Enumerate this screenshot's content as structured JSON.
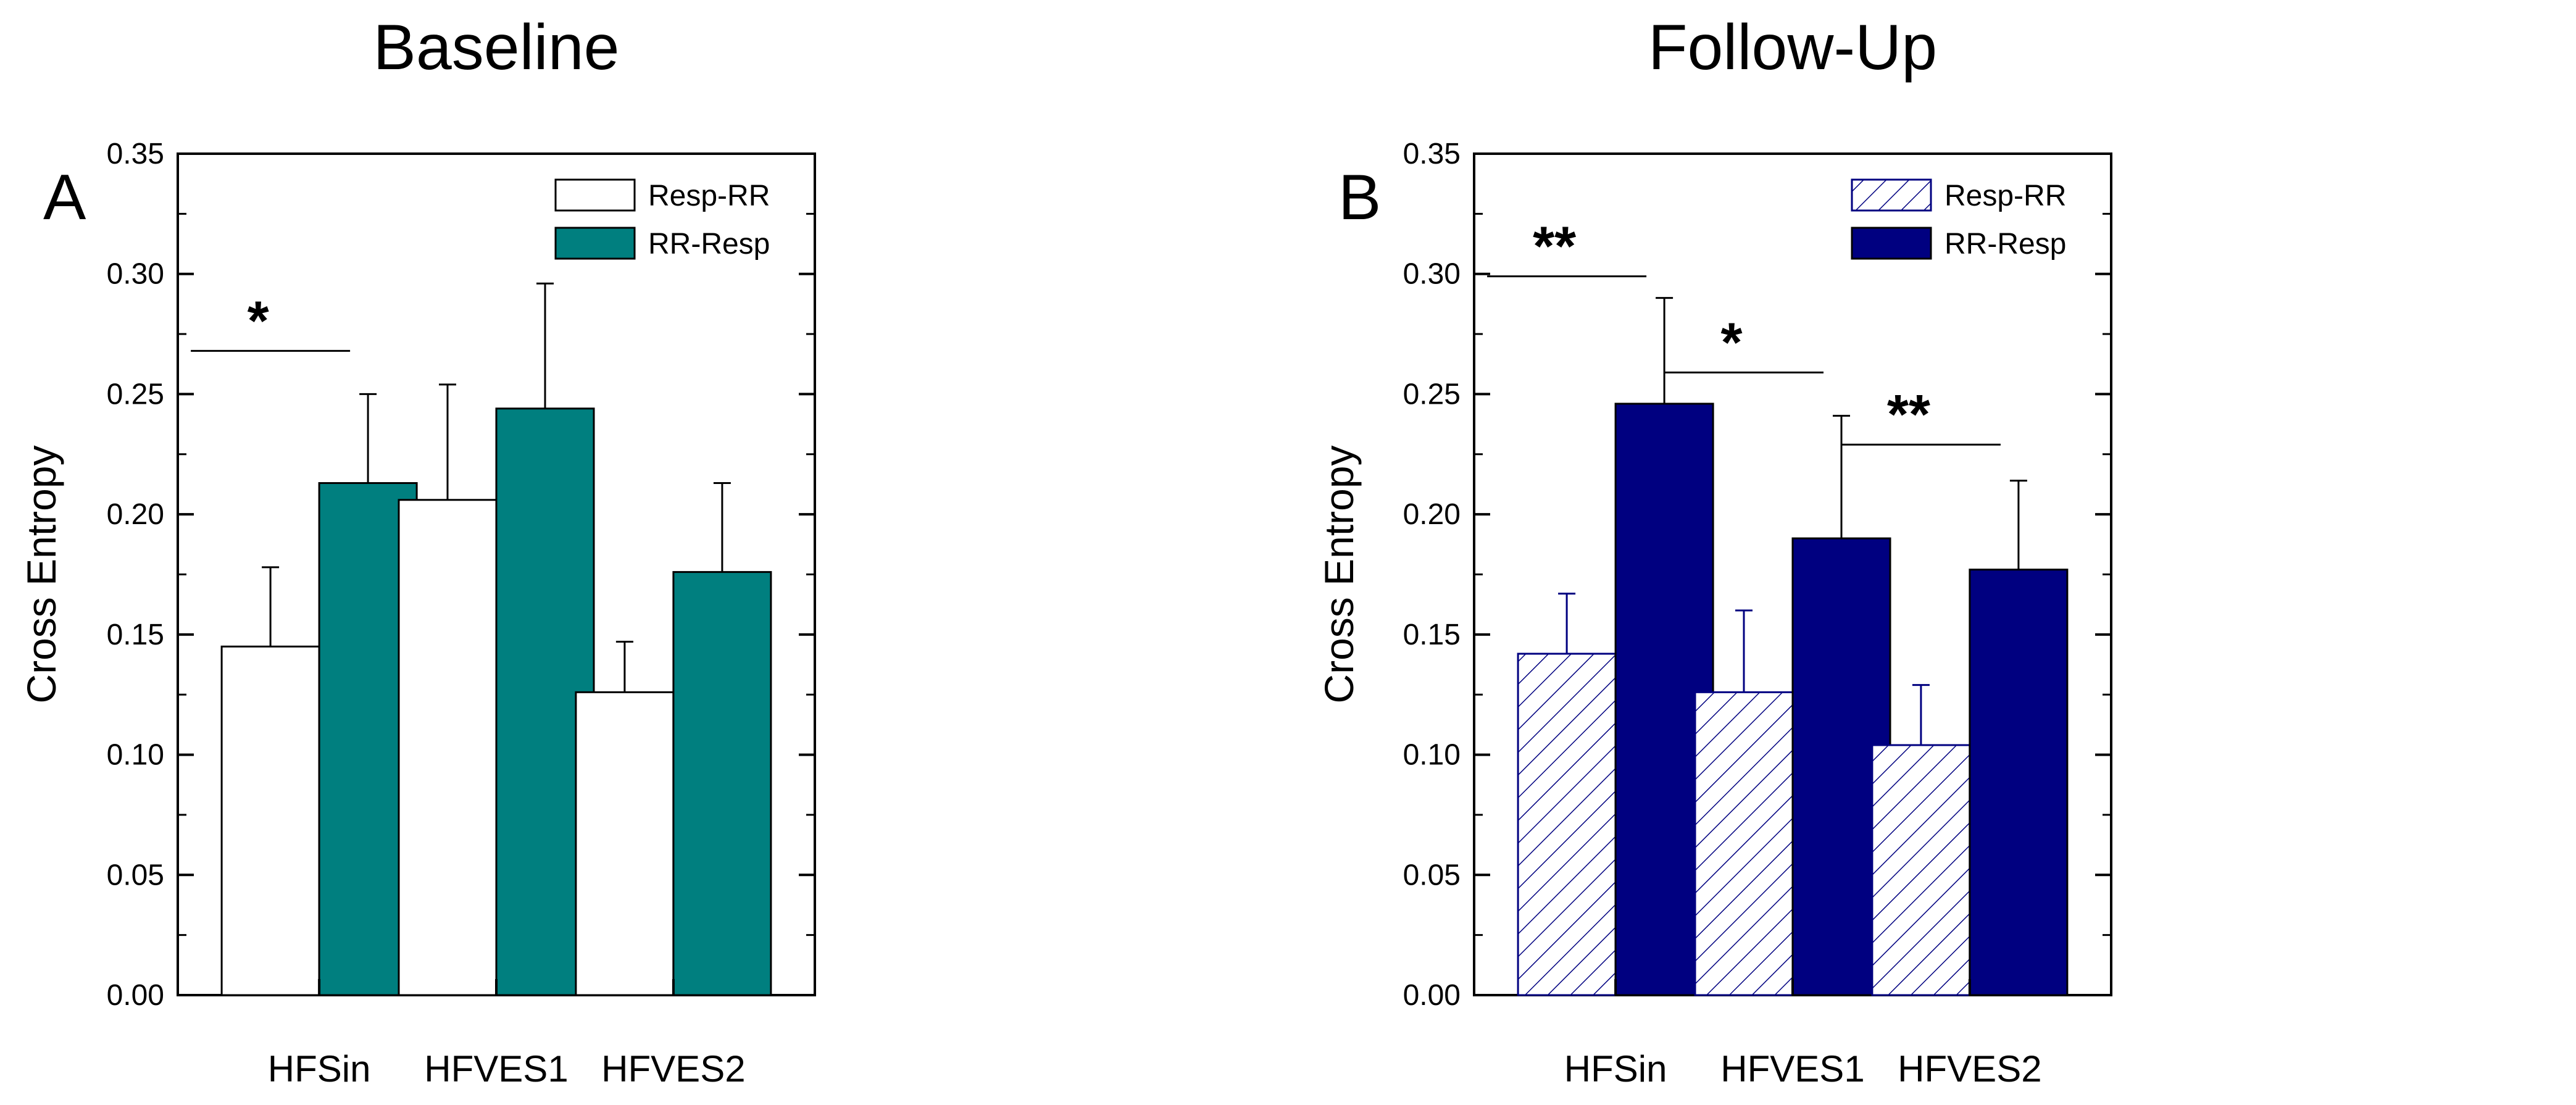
{
  "chart_data": [
    {
      "type": "bar",
      "panel_letter": "A",
      "title": "Baseline",
      "xlabel": "",
      "ylabel": "Cross Entropy",
      "ylim": [
        0,
        0.35
      ],
      "ytick_labels": [
        "0.00",
        "0.05",
        "0.10",
        "0.15",
        "0.20",
        "0.25",
        "0.30",
        "0.35"
      ],
      "grid": false,
      "legend_position": "top-right",
      "categories": [
        "HFSin",
        "HFVES1",
        "HFVES2"
      ],
      "series": [
        {
          "name": "Resp-RR",
          "values": [
            0.145,
            0.206,
            0.126
          ],
          "errors": [
            0.033,
            0.048,
            0.021
          ],
          "fill": "#ffffff",
          "pattern": "none"
        },
        {
          "name": "RR-Resp",
          "values": [
            0.213,
            0.244,
            0.176
          ],
          "errors": [
            0.037,
            0.052,
            0.037
          ],
          "fill": "#007f7f",
          "pattern": "none"
        }
      ],
      "annotations": [
        {
          "category": "HFSin",
          "text": "*",
          "bracket_at": 0.268
        }
      ]
    },
    {
      "type": "bar",
      "panel_letter": "B",
      "title": "Follow-Up",
      "xlabel": "",
      "ylabel": "Cross Entropy",
      "ylim": [
        0,
        0.35
      ],
      "ytick_labels": [
        "0.00",
        "0.05",
        "0.10",
        "0.15",
        "0.20",
        "0.25",
        "0.30",
        "0.35"
      ],
      "grid": false,
      "legend_position": "top-right",
      "categories": [
        "HFSin",
        "HFVES1",
        "HFVES2"
      ],
      "series": [
        {
          "name": "Resp-RR",
          "values": [
            0.142,
            0.126,
            0.104
          ],
          "errors": [
            0.025,
            0.034,
            0.025
          ],
          "fill": "#ffffff",
          "stroke": "#000080",
          "pattern": "hatch"
        },
        {
          "name": "RR-Resp",
          "values": [
            0.246,
            0.19,
            0.177
          ],
          "errors": [
            0.044,
            0.051,
            0.037
          ],
          "fill": "#000080",
          "pattern": "none"
        }
      ],
      "annotations": [
        {
          "category": "HFSin",
          "text": "**",
          "bracket_at": 0.299
        },
        {
          "category": "HFVES1",
          "text": "*",
          "bracket_at": 0.259
        },
        {
          "category": "HFVES2",
          "text": "**",
          "bracket_at": 0.229
        }
      ]
    }
  ]
}
